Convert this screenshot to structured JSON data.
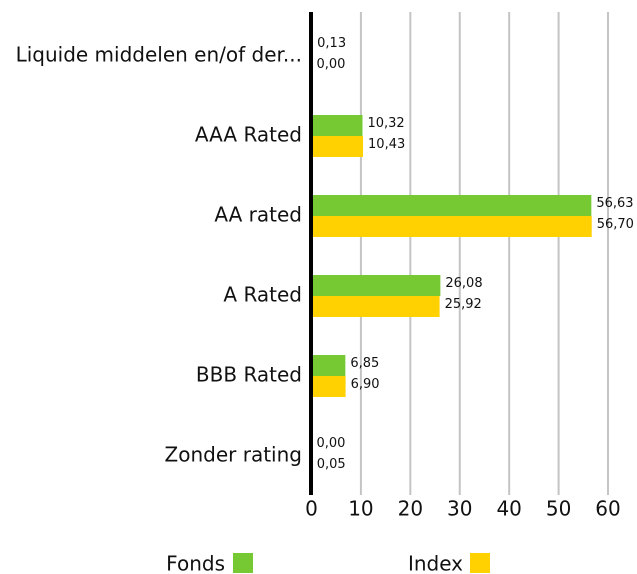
{
  "chart_data": {
    "type": "hbar",
    "categories": [
      "Liquide middelen en/of der...",
      "AAA Rated",
      "AA rated",
      "A Rated",
      "BBB Rated",
      "Zonder rating"
    ],
    "series": [
      {
        "name": "Fonds",
        "color": "#76c932",
        "values": [
          0.13,
          10.32,
          56.63,
          26.08,
          6.85,
          0.0
        ],
        "value_labels": [
          "0,13",
          "10,32",
          "56,63",
          "26,08",
          "6,85",
          "0,00"
        ]
      },
      {
        "name": "Index",
        "color": "#ffd100",
        "values": [
          0.0,
          10.43,
          56.7,
          25.92,
          6.9,
          0.05
        ],
        "value_labels": [
          "0,00",
          "10,43",
          "56,70",
          "25,92",
          "6,90",
          "0,05"
        ]
      }
    ],
    "xlim": [
      0,
      60
    ],
    "xticks": [
      0,
      10,
      20,
      30,
      40,
      50,
      60
    ],
    "grid": true,
    "legend": "bottom"
  }
}
